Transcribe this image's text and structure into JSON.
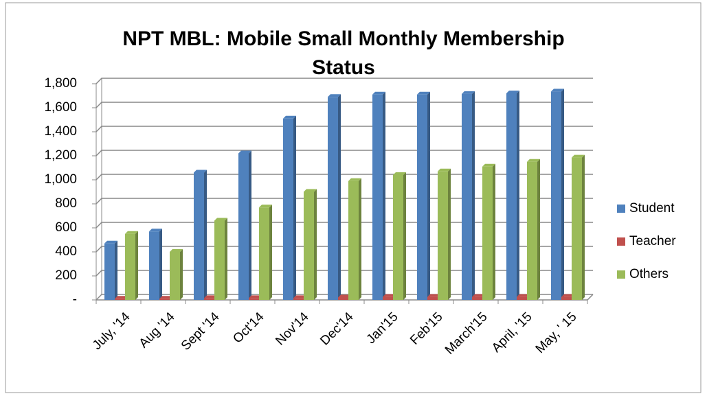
{
  "chart_data": {
    "type": "bar",
    "title": "NPT MBL: Mobile Small Monthly Membership Status",
    "categories": [
      "July, '14",
      "Aug '14",
      "Sept '14",
      "Oct'14",
      "Nov'14",
      "Dec'14",
      "Jan'15",
      "Feb'15",
      "March'15",
      "April, '15",
      "May, ' 15"
    ],
    "series": [
      {
        "name": "Student",
        "color": "#4f81bd",
        "values": [
          470,
          570,
          1060,
          1220,
          1510,
          1690,
          1710,
          1710,
          1715,
          1720,
          1735
        ]
      },
      {
        "name": "Teacher",
        "color": "#c0504d",
        "values": [
          10,
          10,
          15,
          15,
          15,
          20,
          25,
          25,
          25,
          25,
          25
        ]
      },
      {
        "name": "Others",
        "color": "#9bbb59",
        "values": [
          550,
          400,
          660,
          770,
          900,
          990,
          1040,
          1070,
          1110,
          1150,
          1185
        ]
      }
    ],
    "ylim": [
      0,
      1800
    ],
    "yticks": [
      {
        "value": 0,
        "label": "-"
      },
      200,
      400,
      600,
      800,
      {
        "value": 1000,
        "label": "1,000"
      },
      {
        "value": 1200,
        "label": "1,200"
      },
      {
        "value": 1400,
        "label": "1,400"
      },
      {
        "value": 1600,
        "label": "1,600"
      },
      {
        "value": 1800,
        "label": "1,800"
      }
    ],
    "grid": true,
    "legend": "right"
  }
}
